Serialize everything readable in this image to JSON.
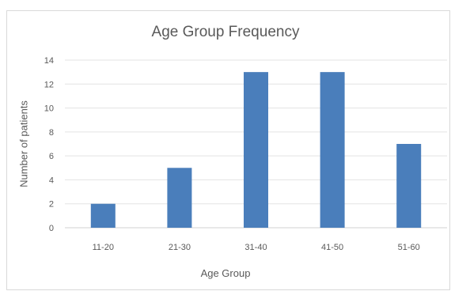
{
  "chart_data": {
    "type": "bar",
    "title": "Age Group Frequency",
    "xlabel": "Age Group",
    "ylabel": "Number of patients",
    "categories": [
      "11-20",
      "21-30",
      "31-40",
      "41-50",
      "51-60"
    ],
    "values": [
      2,
      5,
      13,
      13,
      7
    ],
    "ylim": [
      0,
      14
    ],
    "yticks": [
      "0",
      "2",
      "4",
      "6",
      "8",
      "10",
      "12",
      "14"
    ],
    "grid": true,
    "bar_color": "#4a7ebb",
    "grid_color": "#e3e3e3",
    "text_color": "#595959"
  }
}
